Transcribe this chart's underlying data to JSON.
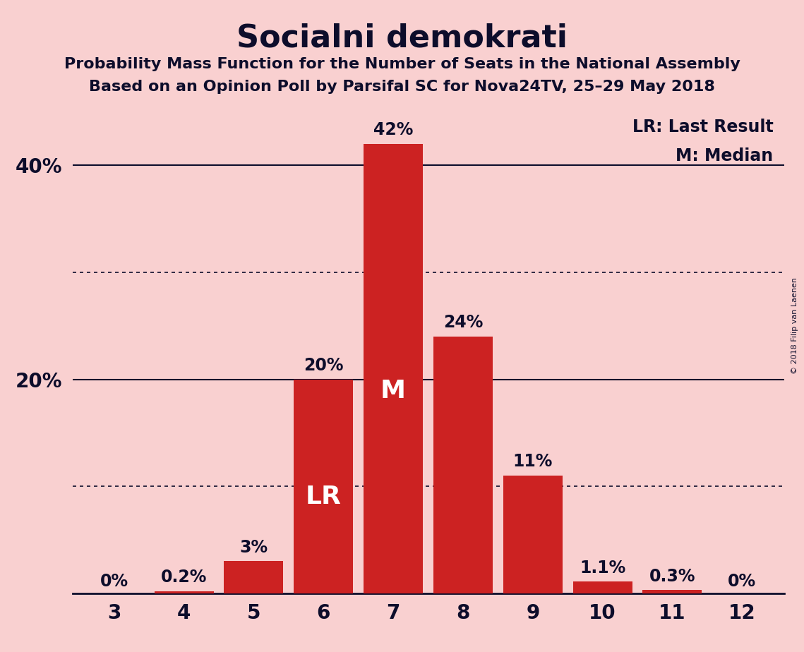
{
  "title": "Socialni demokrati",
  "subtitle1": "Probability Mass Function for the Number of Seats in the National Assembly",
  "subtitle2": "Based on an Opinion Poll by Parsifal SC for Nova24TV, 25–29 May 2018",
  "copyright": "© 2018 Filip van Laenen",
  "categories": [
    3,
    4,
    5,
    6,
    7,
    8,
    9,
    10,
    11,
    12
  ],
  "values": [
    0.0,
    0.2,
    3.0,
    20.0,
    42.0,
    24.0,
    11.0,
    1.1,
    0.3,
    0.0
  ],
  "labels": [
    "0%",
    "0.2%",
    "3%",
    "20%",
    "42%",
    "24%",
    "11%",
    "1.1%",
    "0.3%",
    "0%"
  ],
  "bar_color": "#cc2222",
  "background_color": "#f9d0d0",
  "text_color": "#0d0d2b",
  "ylim": [
    0,
    46
  ],
  "ytick_labeled": [
    20,
    40
  ],
  "ytick_labeled_labels": [
    "20%",
    "40%"
  ],
  "dotted_line_values": [
    10,
    30
  ],
  "solid_line_values": [
    20,
    40
  ],
  "legend_lr": "LR: Last Result",
  "legend_m": "M: Median",
  "lr_label": "LR",
  "m_label": "M",
  "lr_bar_index": 3,
  "m_bar_index": 4
}
